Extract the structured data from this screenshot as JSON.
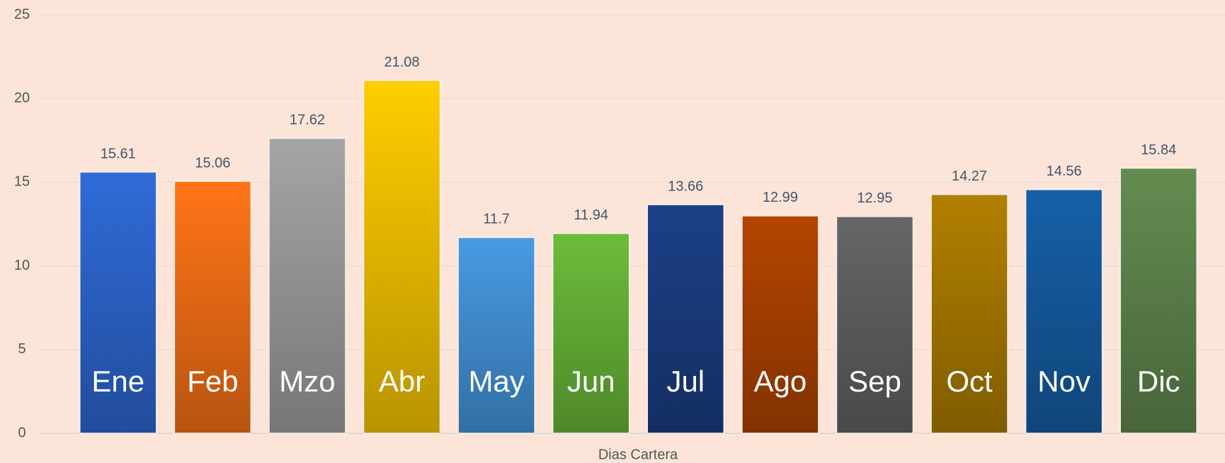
{
  "chart_data": {
    "type": "bar",
    "x_label": "Dias Cartera",
    "categories": [
      "Ene",
      "Feb",
      "Mzo",
      "Abr",
      "May",
      "Jun",
      "Jul",
      "Ago",
      "Sep",
      "Oct",
      "Nov",
      "Dic"
    ],
    "values": [
      15.61,
      15.06,
      17.62,
      21.08,
      11.7,
      11.94,
      13.66,
      12.99,
      12.95,
      14.27,
      14.56,
      15.84
    ],
    "colors": [
      "#2f6bd8",
      "#ff7517",
      "#a5a5a5",
      "#ffcd00",
      "#479ae3",
      "#6cbd3a",
      "#1c4088",
      "#b44500",
      "#666666",
      "#b28000",
      "#1660a8",
      "#648c50"
    ],
    "ylim": [
      0,
      25
    ],
    "yticks": [
      0,
      5,
      10,
      15,
      20,
      25
    ],
    "grid": true
  }
}
